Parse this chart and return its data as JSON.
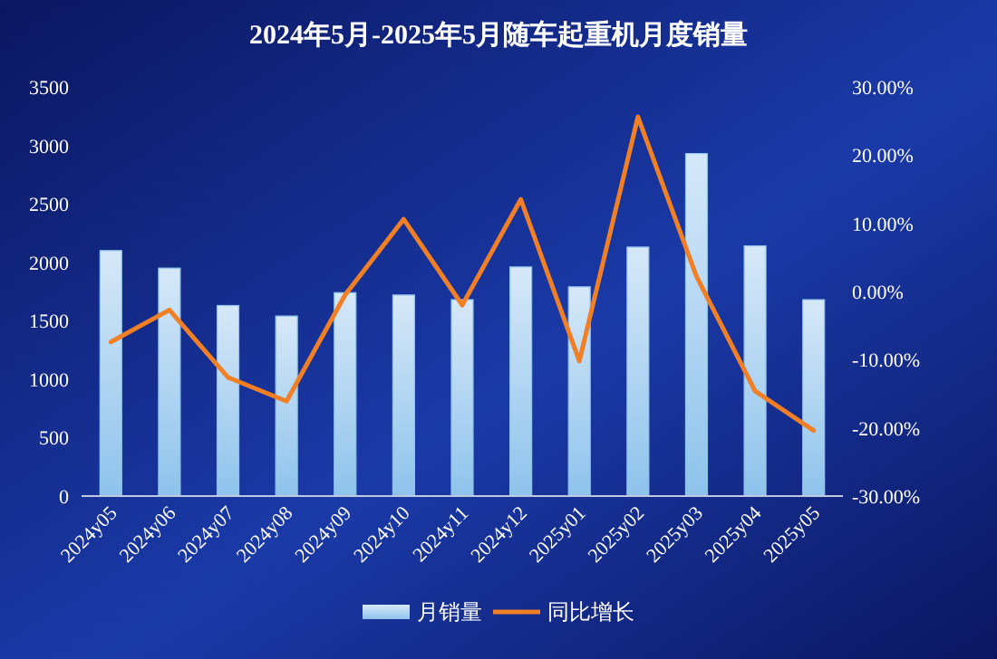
{
  "chart_data": {
    "type": "bar",
    "title": "2024年5月-2025年5月随车起重机月度销量",
    "categories": [
      "2024y05",
      "2024y06",
      "2024y07",
      "2024y08",
      "2024y09",
      "2024y10",
      "2024y11",
      "2024y12",
      "2025y01",
      "2025y02",
      "2025y03",
      "2025y04",
      "2025y05"
    ],
    "series": [
      {
        "name": "月销量",
        "color": "#8ec3ec",
        "values": [
          2100,
          1950,
          1630,
          1540,
          1740,
          1720,
          1680,
          1960,
          1790,
          2130,
          2930,
          2140,
          1680
        ]
      },
      {
        "name": "同比增长",
        "type": "line",
        "axis": "y2",
        "color": "#f07f26",
        "values": [
          -7.4,
          -2.7,
          -12.6,
          -16.1,
          -0.5,
          10.6,
          -2.0,
          13.5,
          -10.2,
          25.6,
          2.2,
          -14.6,
          -20.4
        ]
      }
    ],
    "ylim": [
      0,
      3500
    ],
    "yticks": [
      0,
      500,
      1000,
      1500,
      2000,
      2500,
      3000,
      3500
    ],
    "y2lim": [
      -30,
      30
    ],
    "y2ticks": [
      {
        "value": -30,
        "label": "-30.00%"
      },
      {
        "value": -20,
        "label": "-20.00%"
      },
      {
        "value": -10,
        "label": "-10.00%"
      },
      {
        "value": 0,
        "label": "0.00%"
      },
      {
        "value": 10,
        "label": "10.00%"
      },
      {
        "value": 20,
        "label": "20.00%"
      },
      {
        "value": 30,
        "label": "30.00%"
      }
    ],
    "grid": false,
    "legend": "bottom",
    "marker": "none",
    "line_style": "solid"
  }
}
